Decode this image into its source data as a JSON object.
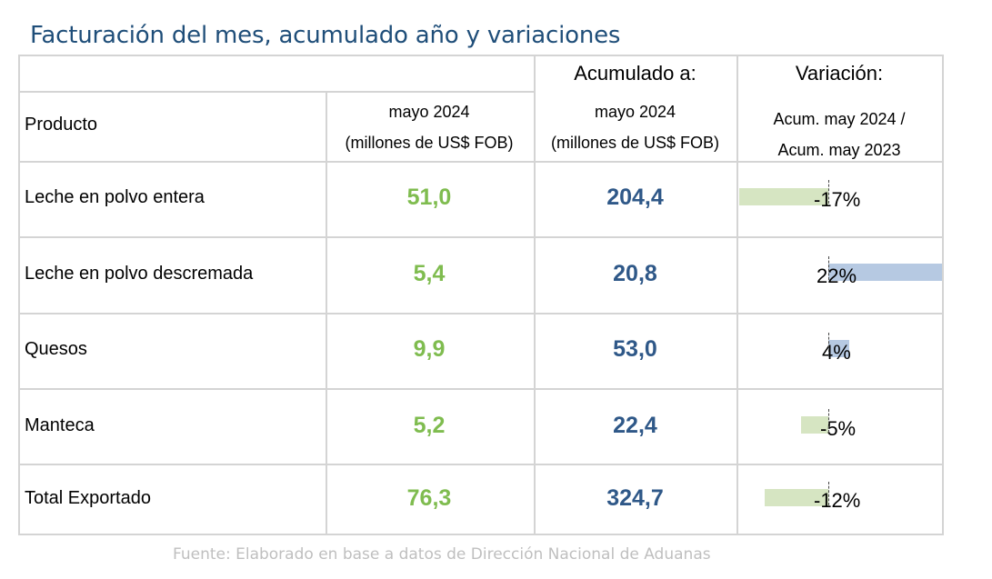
{
  "title": "Facturación del mes, acumulado año y variaciones",
  "headers": {
    "product": "Producto",
    "month_line1": "mayo 2024",
    "month_line2": "(millones de US$ FOB)",
    "cum_title": "Acumulado a:",
    "cum_line1": "mayo 2024",
    "cum_line2": "(millones de US$ FOB)",
    "var_title": "Variación:",
    "var_line1": "Acum. may 2024 /",
    "var_line2": "Acum. may 2023"
  },
  "rows": [
    {
      "product": "Leche en polvo entera",
      "month": "51,0",
      "cumulative": "204,4",
      "variation": "-17%",
      "variation_value": -17
    },
    {
      "product": "Leche en polvo descremada",
      "month": "5,4",
      "cumulative": "20,8",
      "variation": "22%",
      "variation_value": 22
    },
    {
      "product": "Quesos",
      "month": "9,9",
      "cumulative": "53,0",
      "variation": "4%",
      "variation_value": 4
    },
    {
      "product": "Manteca",
      "month": "5,2",
      "cumulative": "22,4",
      "variation": "-5%",
      "variation_value": -5
    },
    {
      "product": "Total Exportado",
      "month": "76,3",
      "cumulative": "324,7",
      "variation": "-12%",
      "variation_value": -12
    }
  ],
  "colors": {
    "month_values": "#7fbc4f",
    "cumulative_values": "#2f5888",
    "negative_bar": "#d6e5c2",
    "positive_bar": "#b6c9e2",
    "title": "#1f4e79"
  },
  "source": "Fuente: Elaborado en base a datos de Dirección Nacional de Aduanas"
}
